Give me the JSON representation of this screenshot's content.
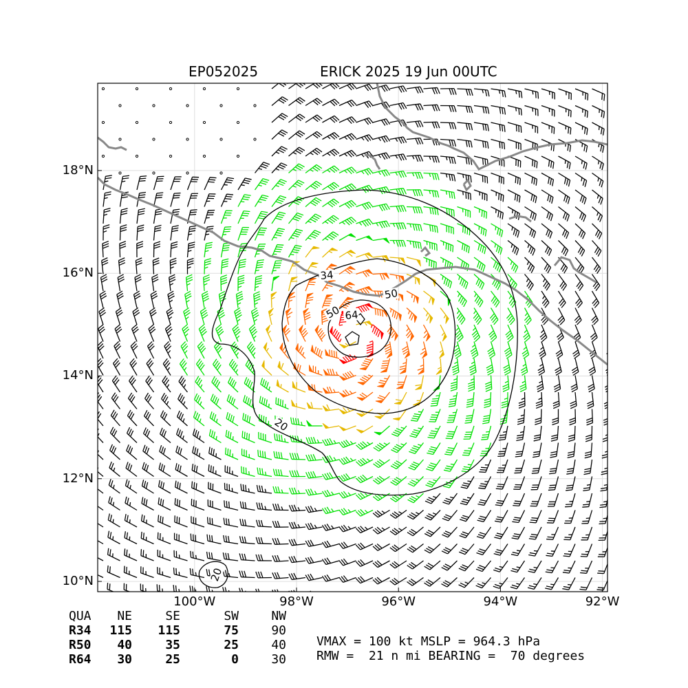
{
  "title": {
    "storm_id": "EP052025",
    "storm_desc": "ERICK 2025 19 Jun 00UTC"
  },
  "map": {
    "lat_ticks": [
      "18°N",
      "16°N",
      "14°N",
      "12°N",
      "10°N"
    ],
    "lon_ticks": [
      "100°W",
      "98°W",
      "96°W",
      "94°W",
      "92°W"
    ],
    "lon_range": [
      -101.9,
      -91.9
    ],
    "lat_range": [
      9.8,
      19.7
    ],
    "center": {
      "lon": -96.85,
      "lat": 14.8
    },
    "contour_labels": [
      "34",
      "50",
      "50",
      "64",
      "20",
      "20"
    ],
    "colors": {
      "coast": "#888888",
      "grid": "#dddddd",
      "barb_calm": "#000000",
      "barb_34": "#00e000",
      "barb_50": "#e6b800",
      "barb_64": "#ff6600",
      "barb_max": "#ff0000",
      "contour": "#000000"
    }
  },
  "wind_radii": {
    "header": [
      "QUA",
      "NE",
      "SE",
      "SW",
      "NW"
    ],
    "rows": [
      {
        "label": "R34",
        "values": [
          "115",
          "115",
          "75",
          "90"
        ]
      },
      {
        "label": "R50",
        "values": [
          "40",
          "35",
          "25",
          "40"
        ]
      },
      {
        "label": "R64",
        "values": [
          "30",
          "25",
          "0",
          "30"
        ]
      }
    ]
  },
  "summary": {
    "line1": "VMAX = 100 kt MSLP = 964.3 hPa",
    "line2": "RMW =  21 n mi BEARING =  70 degrees"
  }
}
